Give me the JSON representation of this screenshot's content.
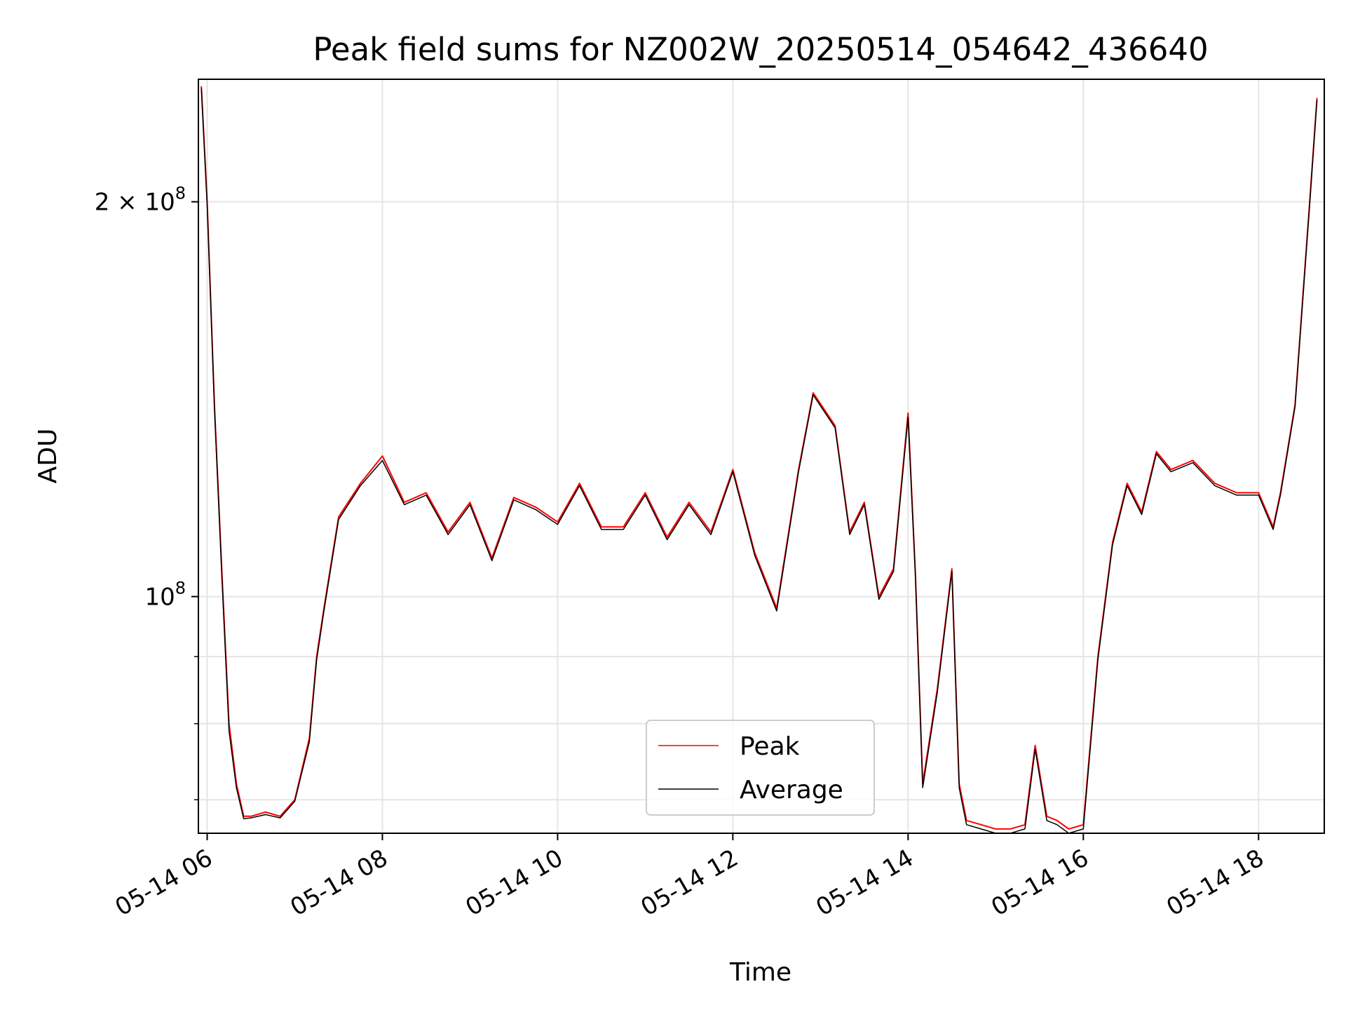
{
  "chart_data": {
    "type": "line",
    "title": "Peak field sums for NZ002W_20250514_054642_436640",
    "xlabel": "Time",
    "ylabel": "ADU",
    "yscale": "log",
    "ylim": [
      66000000,
      248000000
    ],
    "xlim": [
      "2025-05-14 05:54",
      "2025-05-14 18:45"
    ],
    "x_ticks": [
      "05-14 06",
      "05-14 08",
      "05-14 10",
      "05-14 12",
      "05-14 14",
      "05-14 16",
      "05-14 18"
    ],
    "y_ticks": [
      {
        "value": 200000000,
        "mantissa": "2",
        "times": "×",
        "base": "10",
        "exp": "8"
      },
      {
        "value": 100000000,
        "mantissa": "",
        "times": "",
        "base": "10",
        "exp": "8"
      }
    ],
    "y_minor_ticks": [
      60000000,
      70000000,
      80000000,
      90000000
    ],
    "grid": true,
    "legend": {
      "position": "lower center"
    },
    "x": [
      "2025-05-14 05:56",
      "2025-05-14 06:00",
      "2025-05-14 06:05",
      "2025-05-14 06:10",
      "2025-05-14 06:15",
      "2025-05-14 06:20",
      "2025-05-14 06:25",
      "2025-05-14 06:30",
      "2025-05-14 06:40",
      "2025-05-14 06:50",
      "2025-05-14 07:00",
      "2025-05-14 07:10",
      "2025-05-14 07:15",
      "2025-05-14 07:20",
      "2025-05-14 07:30",
      "2025-05-14 07:45",
      "2025-05-14 08:00",
      "2025-05-14 08:15",
      "2025-05-14 08:30",
      "2025-05-14 08:45",
      "2025-05-14 09:00",
      "2025-05-14 09:15",
      "2025-05-14 09:30",
      "2025-05-14 09:45",
      "2025-05-14 10:00",
      "2025-05-14 10:15",
      "2025-05-14 10:30",
      "2025-05-14 10:45",
      "2025-05-14 11:00",
      "2025-05-14 11:15",
      "2025-05-14 11:30",
      "2025-05-14 11:45",
      "2025-05-14 12:00",
      "2025-05-14 12:15",
      "2025-05-14 12:30",
      "2025-05-14 12:45",
      "2025-05-14 12:55",
      "2025-05-14 13:10",
      "2025-05-14 13:20",
      "2025-05-14 13:30",
      "2025-05-14 13:40",
      "2025-05-14 13:50",
      "2025-05-14 14:00",
      "2025-05-14 14:05",
      "2025-05-14 14:10",
      "2025-05-14 14:20",
      "2025-05-14 14:30",
      "2025-05-14 14:35",
      "2025-05-14 14:40",
      "2025-05-14 14:50",
      "2025-05-14 15:00",
      "2025-05-14 15:10",
      "2025-05-14 15:20",
      "2025-05-14 15:27",
      "2025-05-14 15:35",
      "2025-05-14 15:42",
      "2025-05-14 15:50",
      "2025-05-14 16:00",
      "2025-05-14 16:10",
      "2025-05-14 16:20",
      "2025-05-14 16:30",
      "2025-05-14 16:40",
      "2025-05-14 16:50",
      "2025-05-14 17:00",
      "2025-05-14 17:15",
      "2025-05-14 17:30",
      "2025-05-14 17:45",
      "2025-05-14 18:00",
      "2025-05-14 18:10",
      "2025-05-14 18:15",
      "2025-05-14 18:25",
      "2025-05-14 18:35",
      "2025-05-14 18:40"
    ],
    "series": [
      {
        "name": "Peak",
        "color": "#ff0000",
        "values": [
          245000000,
          200000000,
          140000000,
          105000000,
          80000000,
          72000000,
          68000000,
          68000000,
          68500000,
          68000000,
          70000000,
          78000000,
          90000000,
          98000000,
          115000000,
          122000000,
          128000000,
          118000000,
          120000000,
          112000000,
          118000000,
          107000000,
          119000000,
          117000000,
          114000000,
          122000000,
          113000000,
          113000000,
          120000000,
          111000000,
          118000000,
          112000000,
          125000000,
          108000000,
          98000000,
          125000000,
          143000000,
          135000000,
          112000000,
          118000000,
          100000000,
          105000000,
          138000000,
          104000000,
          72000000,
          85000000,
          105000000,
          72000000,
          67500000,
          67000000,
          66500000,
          66500000,
          67000000,
          77000000,
          68000000,
          67500000,
          66500000,
          67000000,
          90000000,
          110000000,
          122000000,
          116000000,
          129000000,
          125000000,
          127000000,
          122000000,
          120000000,
          120000000,
          113000000,
          120000000,
          140000000,
          200000000,
          240000000
        ]
      },
      {
        "name": "Average",
        "color": "#000000",
        "values": [
          244000000,
          199000000,
          139000000,
          104000000,
          79000000,
          71500000,
          67700000,
          67800000,
          68200000,
          67800000,
          69800000,
          77500000,
          89500000,
          97500000,
          114500000,
          121500000,
          127000000,
          117500000,
          119500000,
          111500000,
          117500000,
          106500000,
          118500000,
          116500000,
          113500000,
          121500000,
          112500000,
          112500000,
          119500000,
          110500000,
          117500000,
          111500000,
          124500000,
          107500000,
          97500000,
          124500000,
          142500000,
          134500000,
          111500000,
          117500000,
          99500000,
          104500000,
          137000000,
          103500000,
          71500000,
          84500000,
          104500000,
          71500000,
          67000000,
          66500000,
          66000000,
          66000000,
          66500000,
          76500000,
          67500000,
          67000000,
          66000000,
          66500000,
          89500000,
          109500000,
          121500000,
          115500000,
          128500000,
          124500000,
          126500000,
          121500000,
          119500000,
          119500000,
          112500000,
          119500000,
          139500000,
          199000000,
          239000000
        ]
      }
    ]
  }
}
